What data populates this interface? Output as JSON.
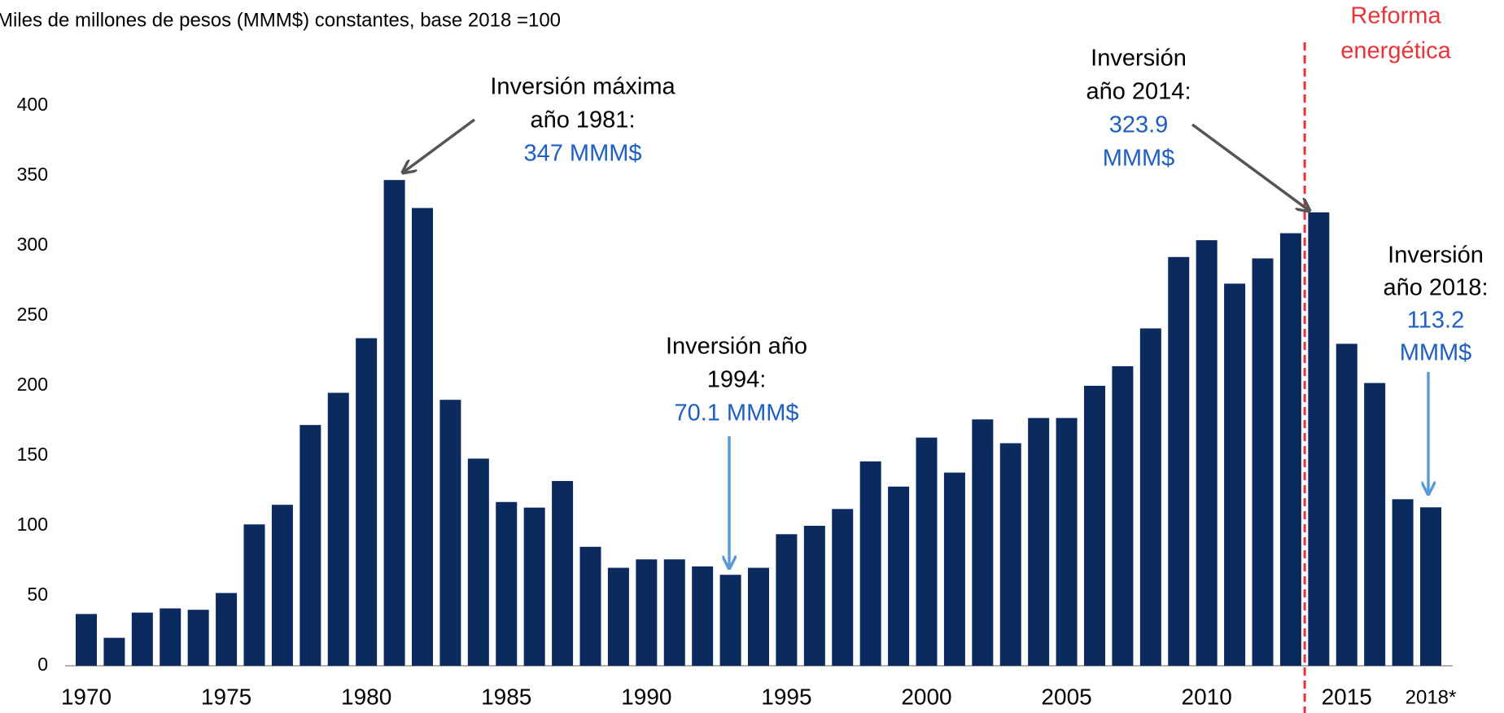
{
  "chart_data": {
    "type": "bar",
    "y_axis_title": "Miles de millones de pesos (MMM$) constantes, base 2018 =100",
    "categories": [
      "1970",
      null,
      null,
      null,
      null,
      "1975",
      null,
      null,
      null,
      null,
      "1980",
      null,
      null,
      null,
      null,
      "1985",
      null,
      null,
      null,
      null,
      "1990",
      null,
      null,
      null,
      null,
      "1995",
      null,
      null,
      null,
      null,
      "2000",
      null,
      null,
      null,
      null,
      "2005",
      null,
      null,
      null,
      null,
      "2010",
      null,
      null,
      null,
      null,
      "2015",
      null,
      null,
      "2018*"
    ],
    "values": [
      37,
      20,
      38,
      41,
      40,
      52,
      101,
      115,
      172,
      195,
      234,
      347,
      327,
      190,
      148,
      117,
      113,
      132,
      85,
      70,
      76,
      76,
      71,
      65,
      70,
      94,
      100,
      112,
      146,
      128,
      163,
      138,
      176,
      159,
      177,
      177,
      200,
      214,
      241,
      292,
      304,
      273,
      291,
      309,
      323.9,
      230,
      202,
      119,
      113.2
    ],
    "color": "#0b2a5e",
    "ylim": [
      0,
      400
    ],
    "yticks": [
      0,
      50,
      100,
      150,
      200,
      250,
      300,
      350,
      400
    ],
    "grid": false,
    "annotations": [
      {
        "lines": [
          "Inversión máxima",
          "año 1981:"
        ],
        "value_lines": [
          "347 MMM$"
        ]
      },
      {
        "lines": [
          "Inversión año",
          "1994:"
        ],
        "value_lines": [
          "70.1 MMM$"
        ]
      },
      {
        "lines": [
          "Inversión",
          "año 2014:"
        ],
        "value_lines": [
          "323.9",
          "MMM$"
        ]
      },
      {
        "lines": [
          "Inversión",
          "año 2018:"
        ],
        "value_lines": [
          "113.2",
          "MMM$"
        ]
      }
    ],
    "reform_label": [
      "Reforma",
      "energética"
    ]
  }
}
